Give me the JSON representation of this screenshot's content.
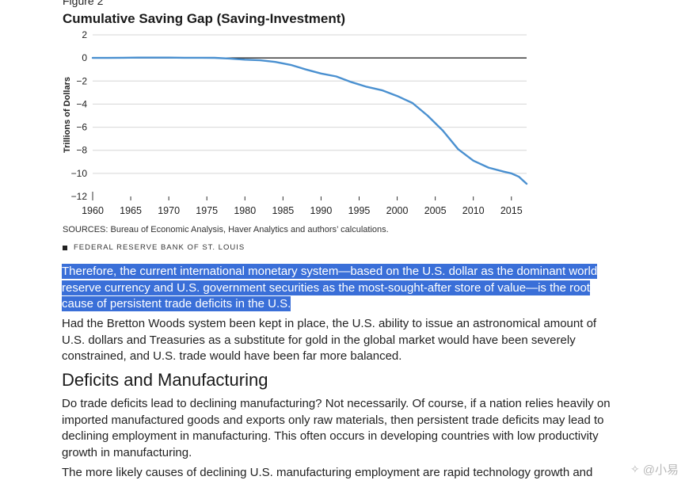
{
  "figure_label": "Figure 2",
  "chart_data": {
    "type": "line",
    "title": "Cumulative Saving Gap (Saving-Investment)",
    "ylabel": "Trillions of Dollars",
    "xlabel": "",
    "xlim": [
      1960,
      2017
    ],
    "ylim": [
      -12,
      2
    ],
    "x_ticks": [
      1960,
      1965,
      1970,
      1975,
      1980,
      1985,
      1990,
      1995,
      2000,
      2005,
      2010,
      2015
    ],
    "x_tick_labels": [
      "1960",
      "1965",
      "1970",
      "1975",
      "1980",
      "1985",
      "1990",
      "1995",
      "2000",
      "2005",
      "2010",
      "2015"
    ],
    "y_ticks": [
      2,
      0,
      -2,
      -4,
      -6,
      -8,
      -10,
      -12
    ],
    "y_tick_labels": [
      "2",
      "0",
      "−2",
      "−4",
      "−6",
      "−8",
      "−10",
      "−12"
    ],
    "grid": true,
    "zero_line": true,
    "series": [
      {
        "color": "#4a90d0",
        "x": [
          1960,
          1962,
          1964,
          1966,
          1968,
          1970,
          1972,
          1974,
          1976,
          1978,
          1980,
          1982,
          1984,
          1986,
          1988,
          1990,
          1992,
          1994,
          1996,
          1998,
          2000,
          2002,
          2004,
          2006,
          2008,
          2010,
          2012,
          2014,
          2015,
          2016,
          2017
        ],
        "y": [
          0,
          0,
          0.02,
          0.03,
          0.03,
          0.03,
          0.02,
          0.02,
          0.01,
          -0.05,
          -0.15,
          -0.2,
          -0.35,
          -0.6,
          -1.0,
          -1.35,
          -1.6,
          -2.1,
          -2.5,
          -2.8,
          -3.3,
          -3.9,
          -5.0,
          -6.3,
          -7.9,
          -8.9,
          -9.5,
          -9.85,
          -10.0,
          -10.3,
          -10.9
        ]
      }
    ]
  },
  "sources_text": "SOURCES: Bureau of Economic Analysis, Haver Analytics and authors’ calculations.",
  "bank_text": "FEDERAL RESERVE BANK OF ST. LOUIS",
  "paragraph_selected": "Therefore, the current international monetary system—based on the U.S. dollar as the dominant world reserve currency and U.S. government securities as the most-sought-after store of value—is the root cause of persistent trade deficits in the U.S.",
  "paragraph_2": "Had the Bretton Woods system been kept in place, the U.S. ability to issue an astronomical amount of U.S. dollars and Treasuries as a substitute for gold in the global market would have been severely constrained, and U.S. trade would have been far more balanced.",
  "section_heading": "Deficits and Manufacturing",
  "paragraph_3": "Do trade deficits lead to declining manufacturing? Not necessarily. Of course, if a nation relies heavily on imported manufactured goods and exports only raw materials, then persistent trade deficits may lead to declining employment in manufacturing. This often occurs in developing countries with low productivity growth in manufacturing.",
  "paragraph_4": "The more likely causes of declining U.S. manufacturing employment are rapid technology growth and",
  "watermark_text": "@小易"
}
